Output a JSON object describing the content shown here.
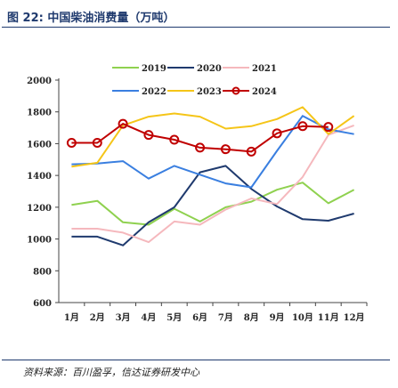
{
  "header": {
    "title": "图 22:  中国柴油消费量（万吨）"
  },
  "footer": {
    "source": "资料来源：百川盈孚，信达证券研发中心"
  },
  "chart_data": {
    "type": "line",
    "categories": [
      "1月",
      "2月",
      "3月",
      "4月",
      "5月",
      "6月",
      "7月",
      "8月",
      "9月",
      "10月",
      "11月",
      "12月"
    ],
    "ylim": [
      600,
      2000
    ],
    "yticks": [
      600,
      800,
      1000,
      1200,
      1400,
      1600,
      1800,
      2000
    ],
    "grid": false,
    "legend_position": "top",
    "series": [
      {
        "name": "2019",
        "color": "#8fd14f",
        "marker": false,
        "values": [
          1215,
          1240,
          1105,
          1090,
          1190,
          1110,
          1200,
          1235,
          1310,
          1355,
          1225,
          1310
        ]
      },
      {
        "name": "2020",
        "color": "#1f3a6e",
        "marker": false,
        "values": [
          1015,
          1015,
          960,
          1105,
          1200,
          1420,
          1460,
          1315,
          1205,
          1125,
          1115,
          1160
        ]
      },
      {
        "name": "2021",
        "color": "#f5b8bd",
        "marker": false,
        "values": [
          1065,
          1065,
          1040,
          980,
          1110,
          1090,
          1185,
          1255,
          1220,
          1390,
          1655,
          1715
        ]
      },
      {
        "name": "2022",
        "color": "#3a7fe0",
        "marker": false,
        "values": [
          1470,
          1475,
          1490,
          1380,
          1460,
          1405,
          1350,
          1325,
          1555,
          1775,
          1690,
          1660
        ]
      },
      {
        "name": "2023",
        "color": "#f5c518",
        "marker": false,
        "values": [
          1455,
          1480,
          1715,
          1770,
          1790,
          1770,
          1695,
          1710,
          1755,
          1830,
          1660,
          1775
        ]
      },
      {
        "name": "2024",
        "color": "#c00000",
        "marker": true,
        "values": [
          1605,
          1605,
          1725,
          1655,
          1625,
          1575,
          1565,
          1550,
          1665,
          1710,
          1705,
          null
        ]
      }
    ]
  }
}
